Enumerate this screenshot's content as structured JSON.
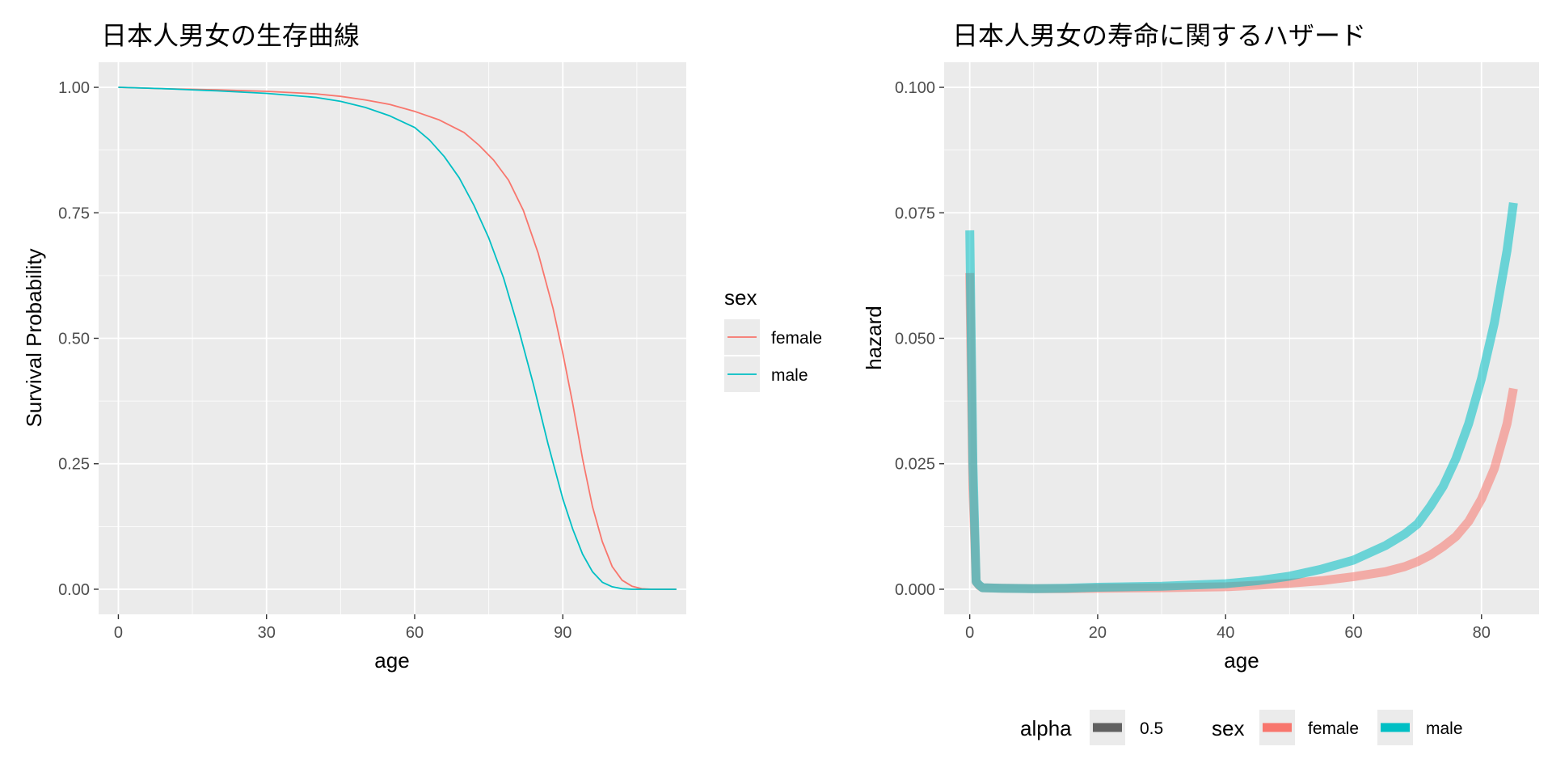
{
  "chart_data": [
    {
      "type": "line",
      "title": "日本人男女の生存曲線",
      "xlabel": "age",
      "ylabel": "Survival Probability",
      "xlim": [
        -4,
        115
      ],
      "ylim": [
        -0.05,
        1.05
      ],
      "x_ticks": [
        0,
        30,
        60,
        90
      ],
      "x_tick_labels": [
        "0",
        "30",
        "60",
        "90"
      ],
      "y_ticks": [
        0,
        0.25,
        0.5,
        0.75,
        1
      ],
      "y_tick_labels": [
        "0.00",
        "0.25",
        "0.50",
        "0.75",
        "1.00"
      ],
      "grid": true,
      "legend": {
        "position": "right",
        "title": "sex",
        "entries": [
          {
            "label": "female",
            "color": "#F8766D"
          },
          {
            "label": "male",
            "color": "#00BFC4"
          }
        ]
      },
      "series": [
        {
          "name": "female",
          "color": "#F8766D",
          "x": [
            0,
            10,
            20,
            30,
            40,
            45,
            50,
            55,
            60,
            65,
            70,
            73,
            76,
            79,
            82,
            85,
            88,
            90,
            92,
            94,
            96,
            98,
            100,
            102,
            104,
            106,
            108,
            113
          ],
          "y": [
            1.0,
            0.997,
            0.995,
            0.992,
            0.987,
            0.982,
            0.975,
            0.966,
            0.952,
            0.935,
            0.91,
            0.885,
            0.855,
            0.815,
            0.755,
            0.67,
            0.56,
            0.47,
            0.37,
            0.26,
            0.165,
            0.095,
            0.045,
            0.018,
            0.006,
            0.001,
            0.0,
            0.0
          ]
        },
        {
          "name": "male",
          "color": "#00BFC4",
          "x": [
            0,
            10,
            20,
            30,
            40,
            45,
            50,
            55,
            60,
            63,
            66,
            69,
            72,
            75,
            78,
            81,
            84,
            87,
            90,
            92,
            94,
            96,
            98,
            100,
            102,
            104,
            106,
            113
          ],
          "y": [
            1.0,
            0.997,
            0.993,
            0.988,
            0.98,
            0.972,
            0.96,
            0.943,
            0.92,
            0.895,
            0.862,
            0.82,
            0.765,
            0.7,
            0.62,
            0.52,
            0.41,
            0.29,
            0.18,
            0.12,
            0.07,
            0.035,
            0.014,
            0.005,
            0.001,
            0.0,
            0.0,
            0.0
          ]
        }
      ]
    },
    {
      "type": "line",
      "title": "日本人男女の寿命に関するハザード",
      "xlabel": "age",
      "ylabel": "hazard",
      "xlim": [
        -4,
        89
      ],
      "ylim": [
        -0.005,
        0.105
      ],
      "x_ticks": [
        0,
        20,
        40,
        60,
        80
      ],
      "x_tick_labels": [
        "0",
        "20",
        "40",
        "60",
        "80"
      ],
      "y_ticks": [
        0,
        0.025,
        0.05,
        0.075,
        0.1
      ],
      "y_tick_labels": [
        "0.000",
        "0.025",
        "0.050",
        "0.075",
        "0.100"
      ],
      "grid": true,
      "legend": {
        "position": "bottom",
        "groups": [
          {
            "title": "alpha",
            "entries": [
              {
                "label": "0.5",
                "color": "#333333"
              }
            ]
          },
          {
            "title": "sex",
            "entries": [
              {
                "label": "female",
                "color": "#F8766D"
              },
              {
                "label": "male",
                "color": "#00BFC4"
              }
            ]
          }
        ]
      },
      "alpha": 0.5,
      "series": [
        {
          "name": "female",
          "color": "#F8766D",
          "x": [
            0,
            0.5,
            1,
            1.5,
            2,
            5,
            10,
            15,
            20,
            30,
            40,
            45,
            50,
            55,
            60,
            65,
            68,
            70,
            72,
            74,
            76,
            78,
            80,
            82,
            84,
            85
          ],
          "y": [
            0.063,
            0.02,
            0.0015,
            0.0007,
            0.0003,
            0.0002,
            0.0001,
            0.0001,
            0.0002,
            0.0003,
            0.0005,
            0.0008,
            0.0012,
            0.0017,
            0.0025,
            0.0035,
            0.0045,
            0.0055,
            0.0068,
            0.0085,
            0.0105,
            0.0135,
            0.018,
            0.024,
            0.033,
            0.04
          ]
        },
        {
          "name": "male",
          "color": "#00BFC4",
          "x": [
            0,
            0.5,
            1,
            1.5,
            2,
            5,
            10,
            15,
            20,
            30,
            40,
            45,
            50,
            55,
            60,
            65,
            68,
            70,
            72,
            74,
            76,
            78,
            80,
            82,
            84,
            85
          ],
          "y": [
            0.0715,
            0.025,
            0.0015,
            0.0008,
            0.0003,
            0.0002,
            0.0001,
            0.0002,
            0.0004,
            0.0006,
            0.0011,
            0.0017,
            0.0026,
            0.004,
            0.0058,
            0.0087,
            0.011,
            0.013,
            0.0165,
            0.0205,
            0.026,
            0.033,
            0.042,
            0.053,
            0.0675,
            0.077
          ]
        }
      ]
    }
  ]
}
